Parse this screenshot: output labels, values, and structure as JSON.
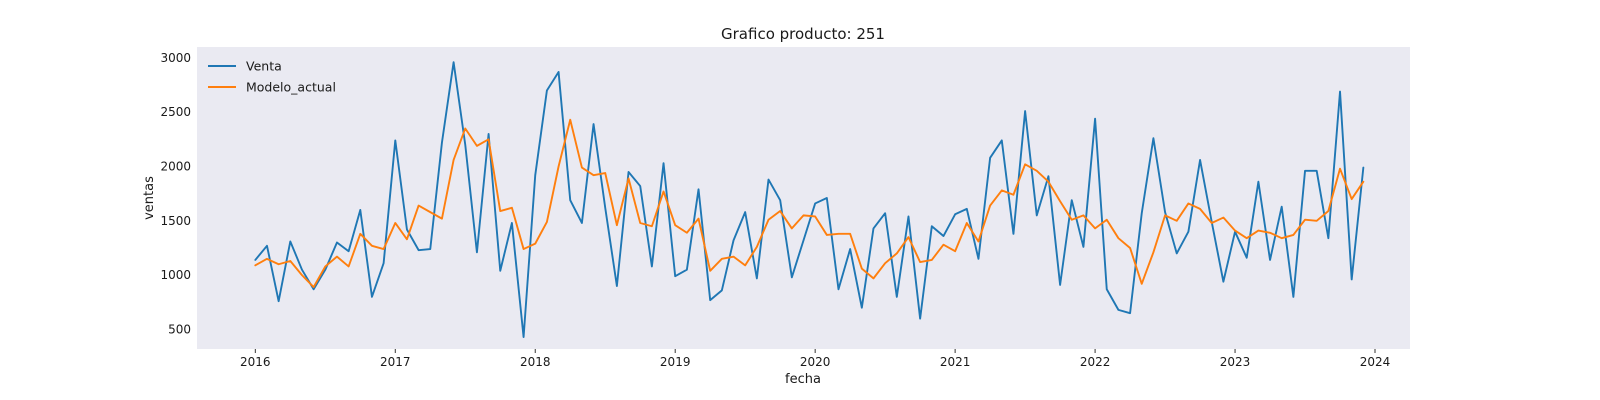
{
  "chart_data": {
    "type": "line",
    "title": "Grafico producto: 251",
    "xlabel": "fecha",
    "ylabel": "ventas",
    "x_start": "2016-01",
    "x_frequency": "monthly",
    "x_ticks": [
      "2016",
      "2017",
      "2018",
      "2019",
      "2020",
      "2021",
      "2022",
      "2023",
      "2024"
    ],
    "xlim": [
      "2015-08",
      "2024-04"
    ],
    "y_ticks": [
      500,
      1000,
      1500,
      2000,
      2500,
      3000
    ],
    "ylim": [
      320,
      3100
    ],
    "grid": false,
    "legend_position": "upper-left",
    "series": [
      {
        "name": "Venta",
        "color": "#1f77b4",
        "values": [
          1140,
          1270,
          760,
          1310,
          1050,
          870,
          1050,
          1300,
          1220,
          1600,
          800,
          1110,
          2240,
          1420,
          1230,
          1240,
          2220,
          2960,
          2200,
          1210,
          2300,
          1040,
          1480,
          430,
          1920,
          2700,
          2870,
          1690,
          1480,
          2390,
          1620,
          900,
          1950,
          1820,
          1080,
          2030,
          990,
          1050,
          1790,
          770,
          860,
          1320,
          1580,
          970,
          1880,
          1690,
          980,
          1320,
          1660,
          1710,
          870,
          1240,
          700,
          1430,
          1570,
          800,
          1540,
          600,
          1450,
          1360,
          1560,
          1610,
          1150,
          2080,
          2240,
          1380,
          2510,
          1550,
          1910,
          910,
          1690,
          1260,
          2440,
          870,
          680,
          650,
          1570,
          2260,
          1580,
          1200,
          1400,
          2060,
          1490,
          940,
          1400,
          1160,
          1860,
          1140,
          1630,
          800,
          1960,
          1960,
          1340,
          2690,
          960,
          1990
        ]
      },
      {
        "name": "Modelo_actual",
        "color": "#ff7f0e",
        "values": [
          1090,
          1150,
          1100,
          1130,
          1000,
          890,
          1080,
          1170,
          1080,
          1380,
          1270,
          1240,
          1480,
          1330,
          1640,
          1580,
          1520,
          2060,
          2350,
          2190,
          2250,
          1590,
          1620,
          1240,
          1290,
          1490,
          2000,
          2430,
          1990,
          1920,
          1940,
          1460,
          1890,
          1480,
          1450,
          1770,
          1460,
          1390,
          1520,
          1040,
          1150,
          1170,
          1090,
          1260,
          1510,
          1590,
          1430,
          1550,
          1540,
          1370,
          1380,
          1380,
          1060,
          970,
          1110,
          1200,
          1350,
          1120,
          1140,
          1280,
          1220,
          1480,
          1310,
          1640,
          1780,
          1740,
          2020,
          1960,
          1860,
          1680,
          1510,
          1550,
          1430,
          1510,
          1340,
          1250,
          920,
          1210,
          1550,
          1500,
          1660,
          1610,
          1480,
          1530,
          1410,
          1340,
          1410,
          1390,
          1340,
          1370,
          1510,
          1500,
          1590,
          1980,
          1700,
          1860
        ]
      }
    ]
  }
}
